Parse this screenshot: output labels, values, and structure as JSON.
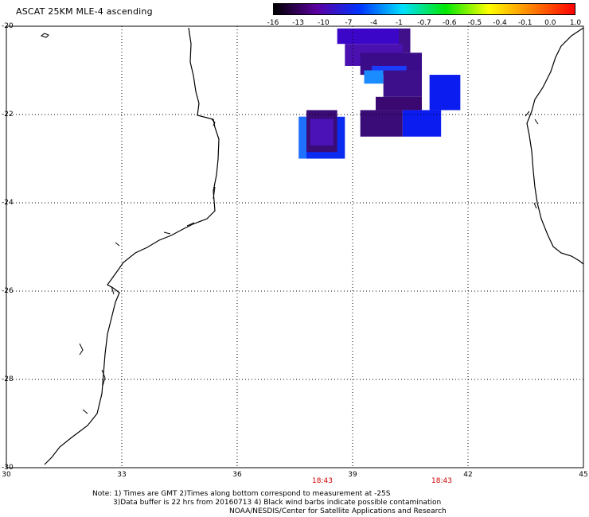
{
  "title": "ASCAT 25KM MLE-4 ascending",
  "colorbar": {
    "labels": [
      "-16",
      "-13",
      "-10",
      "-7",
      "-4",
      "-1",
      "-0.7",
      "-0.6",
      "-0.5",
      "-0.4",
      "-0.1",
      "0.0",
      "1.0"
    ],
    "colors": [
      "#000000",
      "#5b00a0",
      "#0033ff",
      "#00e0ff",
      "#00e800",
      "#ffff00",
      "#ff8000",
      "#ff0000"
    ]
  },
  "axes": {
    "lon_ticks": [
      "30",
      "33",
      "36",
      "39",
      "42",
      "45"
    ],
    "lat_ticks": [
      "-20",
      "-22",
      "-24",
      "-26",
      "-28",
      "-30"
    ]
  },
  "times": [
    "18:43",
    "18:43"
  ],
  "notes": {
    "line1": "Note: 1) Times are GMT 2)Times along bottom correspond to measurement at -25S",
    "line2": "3)Data buffer is 22 hrs from 20160713 4) Black wind barbs indicate possible contamination",
    "line3": "NOAA/NESDIS/Center for Satellite Applications and Research"
  },
  "cells": [
    {
      "lon": 38.6,
      "lat": -20.05,
      "lon2": 40.2,
      "lat2": -20.4,
      "color": "#3b06c8"
    },
    {
      "lon": 40.2,
      "lat": -20.05,
      "lon2": 40.5,
      "lat2": -20.6,
      "color": "#40108a"
    },
    {
      "lon": 38.8,
      "lat": -20.4,
      "lon2": 40.3,
      "lat2": -20.9,
      "color": "#4a10b0"
    },
    {
      "lon": 39.2,
      "lat": -20.6,
      "lon2": 40.8,
      "lat2": -21.1,
      "color": "#3a0c8a"
    },
    {
      "lon": 39.5,
      "lat": -20.9,
      "lon2": 40.4,
      "lat2": -21.0,
      "color": "#1a3cff"
    },
    {
      "lon": 39.3,
      "lat": -21.0,
      "lon2": 39.8,
      "lat2": -21.3,
      "color": "#1a8cff"
    },
    {
      "lon": 39.8,
      "lat": -21.0,
      "lon2": 40.8,
      "lat2": -21.6,
      "color": "#3d0f8a"
    },
    {
      "lon": 39.6,
      "lat": -21.6,
      "lon2": 40.8,
      "lat2": -21.9,
      "color": "#3a0870"
    },
    {
      "lon": 41.0,
      "lat": -21.1,
      "lon2": 41.8,
      "lat2": -21.9,
      "color": "#0a1cf0"
    },
    {
      "lon": 39.2,
      "lat": -21.9,
      "lon2": 40.3,
      "lat2": -22.5,
      "color": "#3a0c78"
    },
    {
      "lon": 40.3,
      "lat": -21.9,
      "lon2": 41.3,
      "lat2": -22.5,
      "color": "#0a1cf0"
    },
    {
      "lon": 37.6,
      "lat": -22.05,
      "lon2": 38.8,
      "lat2": -23.0,
      "color": "#0a2cf0"
    },
    {
      "lon": 37.6,
      "lat": -22.05,
      "lon2": 37.8,
      "lat2": -23.0,
      "color": "#1e70ff"
    },
    {
      "lon": 37.8,
      "lat": -21.9,
      "lon2": 38.6,
      "lat2": -22.85,
      "color": "#3a0c78"
    },
    {
      "lon": 37.9,
      "lat": -22.1,
      "lon2": 38.5,
      "lat2": -22.7,
      "color": "#4b12b8"
    }
  ]
}
